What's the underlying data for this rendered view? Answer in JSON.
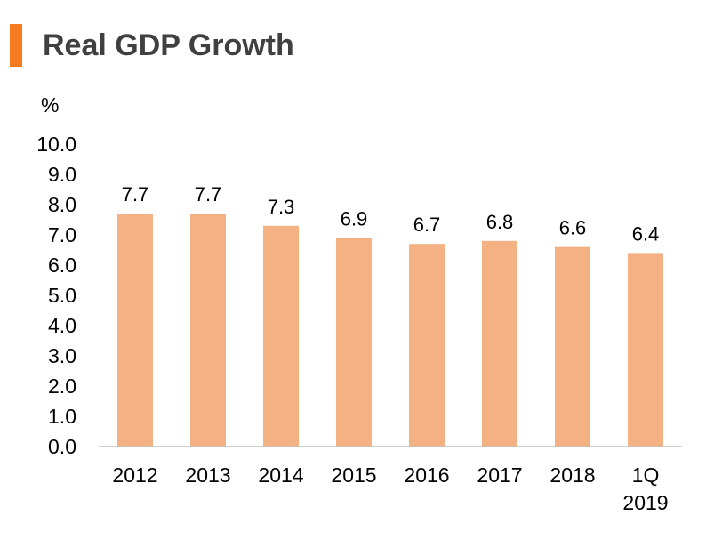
{
  "header": {
    "title": "Real GDP Growth",
    "accent_color": "#F47B20"
  },
  "chart_data": {
    "type": "bar",
    "title": "Real GDP Growth",
    "ylabel": "%",
    "xlabel": "",
    "ylim": [
      0.0,
      10.0
    ],
    "yticks": [
      "0.0",
      "1.0",
      "2.0",
      "3.0",
      "4.0",
      "5.0",
      "6.0",
      "7.0",
      "8.0",
      "9.0",
      "10.0"
    ],
    "categories": [
      [
        "2012"
      ],
      [
        "2013"
      ],
      [
        "2014"
      ],
      [
        "2015"
      ],
      [
        "2016"
      ],
      [
        "2017"
      ],
      [
        "2018"
      ],
      [
        "1Q",
        "2019"
      ]
    ],
    "values": [
      7.7,
      7.7,
      7.3,
      6.9,
      6.7,
      6.8,
      6.6,
      6.4
    ],
    "data_labels": [
      "7.7",
      "7.7",
      "7.3",
      "6.9",
      "6.7",
      "6.8",
      "6.6",
      "6.4"
    ],
    "bar_color": "#F4B183",
    "axis_color": "#BFBFBF",
    "grid": false,
    "legend": "none"
  }
}
